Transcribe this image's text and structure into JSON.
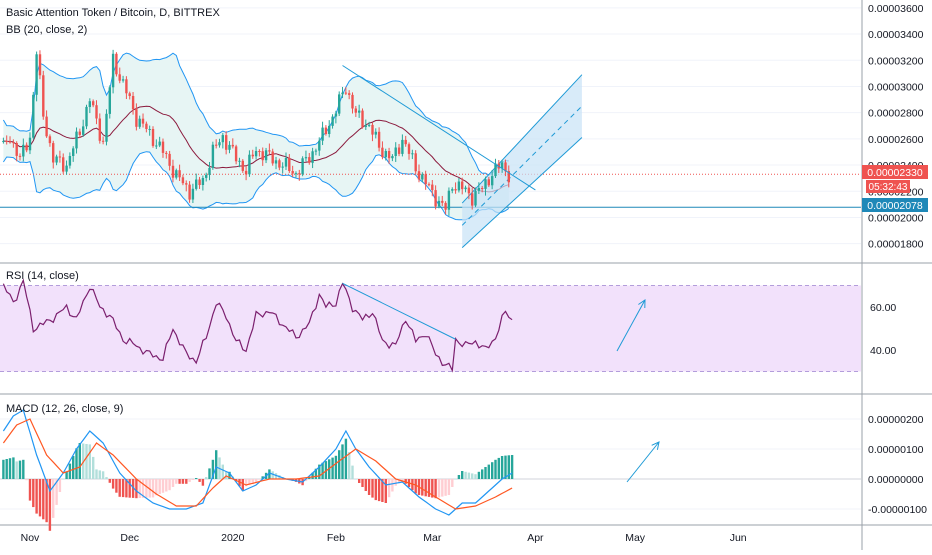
{
  "chart_data": [
    {
      "type": "candlestick",
      "panel": "price",
      "title": "Basic Attention Token / Bitcoin, D, BITTREX",
      "indicator_label": "BB (20, close, 2)",
      "y_ticks": [
        "0.00003600",
        "0.00003400",
        "0.00003200",
        "0.00003000",
        "0.00002800",
        "0.00002600",
        "0.00002400",
        "0.00002200",
        "0.00002000",
        "0.00001800"
      ],
      "ylim": [
        1.66e-05,
        3.66e-05
      ],
      "last_price": "0.00002330",
      "countdown": "05:32:43",
      "level_price": "0.00002078",
      "level_value": 2.078e-05,
      "keypoints": [
        {
          "day": 0,
          "close": 2.52e-05
        },
        {
          "day": 2,
          "close": 2.62e-05
        },
        {
          "day": 5,
          "close": 2.44e-05
        },
        {
          "day": 8,
          "close": 2.62e-05
        },
        {
          "day": 10,
          "close": 3.26e-05
        },
        {
          "day": 12,
          "close": 2.78e-05
        },
        {
          "day": 15,
          "close": 2.44e-05
        },
        {
          "day": 19,
          "close": 2.4e-05
        },
        {
          "day": 23,
          "close": 2.66e-05
        },
        {
          "day": 26,
          "close": 2.9e-05
        },
        {
          "day": 30,
          "close": 2.57e-05
        },
        {
          "day": 33,
          "close": 3.2e-05
        },
        {
          "day": 36,
          "close": 3.02e-05
        },
        {
          "day": 40,
          "close": 2.76e-05
        },
        {
          "day": 44,
          "close": 2.64e-05
        },
        {
          "day": 48,
          "close": 2.5e-05
        },
        {
          "day": 52,
          "close": 2.32e-05
        },
        {
          "day": 56,
          "close": 2.2e-05
        },
        {
          "day": 60,
          "close": 2.28e-05
        },
        {
          "day": 63,
          "close": 2.5e-05
        },
        {
          "day": 66,
          "close": 2.62e-05
        },
        {
          "day": 70,
          "close": 2.45e-05
        },
        {
          "day": 73,
          "close": 2.36e-05
        },
        {
          "day": 76,
          "close": 2.52e-05
        },
        {
          "day": 80,
          "close": 2.46e-05
        },
        {
          "day": 84,
          "close": 2.4e-05
        },
        {
          "day": 88,
          "close": 2.34e-05
        },
        {
          "day": 92,
          "close": 2.46e-05
        },
        {
          "day": 96,
          "close": 2.62e-05
        },
        {
          "day": 100,
          "close": 2.82e-05
        },
        {
          "day": 103,
          "close": 3e-05
        },
        {
          "day": 106,
          "close": 2.78e-05
        },
        {
          "day": 110,
          "close": 2.7e-05
        },
        {
          "day": 113,
          "close": 2.54e-05
        },
        {
          "day": 117,
          "close": 2.44e-05
        },
        {
          "day": 120,
          "close": 2.6e-05
        },
        {
          "day": 124,
          "close": 2.38e-05
        },
        {
          "day": 128,
          "close": 2.22e-05
        },
        {
          "day": 131,
          "close": 2.12e-05
        },
        {
          "day": 133,
          "close": 2.06e-05
        },
        {
          "day": 135,
          "close": 2.26e-05
        },
        {
          "day": 138,
          "close": 2.22e-05
        },
        {
          "day": 141,
          "close": 2.16e-05
        },
        {
          "day": 144,
          "close": 2.22e-05
        },
        {
          "day": 147,
          "close": 2.34e-05
        },
        {
          "day": 150,
          "close": 2.4e-05
        },
        {
          "day": 152,
          "close": 2.33e-05
        }
      ],
      "channel": {
        "lower_start": {
          "day": 138,
          "value": 1.77e-05
        },
        "lower_end": {
          "day": 174,
          "value": 2.61e-05
        },
        "upper_start": {
          "day": 138,
          "value": 2.11e-05
        },
        "upper_end": {
          "day": 174,
          "value": 3.09e-05
        },
        "mid_start": {
          "day": 138,
          "value": 1.94e-05
        },
        "mid_end": {
          "day": 174,
          "value": 2.85e-05
        }
      },
      "trendline": {
        "start": {
          "day": 102,
          "value": 3.16e-05
        },
        "end": {
          "day": 160,
          "value": 2.21e-05
        }
      }
    },
    {
      "type": "line",
      "panel": "rsi",
      "indicator_label": "RSI (14, close)",
      "y_ticks": [
        "60.00",
        "40.00"
      ],
      "ylim": [
        20,
        80
      ],
      "band": [
        30,
        70
      ],
      "keypoints": [
        {
          "day": 0,
          "value": 70
        },
        {
          "day": 3,
          "value": 62
        },
        {
          "day": 6,
          "value": 72
        },
        {
          "day": 9,
          "value": 50
        },
        {
          "day": 12,
          "value": 52
        },
        {
          "day": 16,
          "value": 56
        },
        {
          "day": 19,
          "value": 60
        },
        {
          "day": 22,
          "value": 54
        },
        {
          "day": 26,
          "value": 70
        },
        {
          "day": 29,
          "value": 60
        },
        {
          "day": 32,
          "value": 56
        },
        {
          "day": 36,
          "value": 45
        },
        {
          "day": 40,
          "value": 42
        },
        {
          "day": 44,
          "value": 38
        },
        {
          "day": 48,
          "value": 36
        },
        {
          "day": 51,
          "value": 50
        },
        {
          "day": 55,
          "value": 38
        },
        {
          "day": 58,
          "value": 35
        },
        {
          "day": 61,
          "value": 46
        },
        {
          "day": 64,
          "value": 62
        },
        {
          "day": 67,
          "value": 56
        },
        {
          "day": 70,
          "value": 44
        },
        {
          "day": 73,
          "value": 40
        },
        {
          "day": 76,
          "value": 56
        },
        {
          "day": 80,
          "value": 58
        },
        {
          "day": 84,
          "value": 52
        },
        {
          "day": 88,
          "value": 46
        },
        {
          "day": 92,
          "value": 52
        },
        {
          "day": 95,
          "value": 66
        },
        {
          "day": 97,
          "value": 60
        },
        {
          "day": 100,
          "value": 62
        },
        {
          "day": 102,
          "value": 71
        },
        {
          "day": 105,
          "value": 60
        },
        {
          "day": 108,
          "value": 54
        },
        {
          "day": 111,
          "value": 58
        },
        {
          "day": 114,
          "value": 44
        },
        {
          "day": 118,
          "value": 42
        },
        {
          "day": 121,
          "value": 55
        },
        {
          "day": 124,
          "value": 44
        },
        {
          "day": 127,
          "value": 48
        },
        {
          "day": 130,
          "value": 38
        },
        {
          "day": 133,
          "value": 33
        },
        {
          "day": 135,
          "value": 31
        },
        {
          "day": 136,
          "value": 45
        },
        {
          "day": 139,
          "value": 42
        },
        {
          "day": 142,
          "value": 44
        },
        {
          "day": 145,
          "value": 40
        },
        {
          "day": 148,
          "value": 46
        },
        {
          "day": 151,
          "value": 58
        },
        {
          "day": 153,
          "value": 54
        }
      ],
      "trendline": {
        "start": {
          "day": 102,
          "value": 71
        },
        "end": {
          "day": 136,
          "value": 45
        }
      }
    },
    {
      "type": "bar+line",
      "panel": "macd",
      "indicator_label": "MACD (12, 26, close, 9)",
      "y_ticks": [
        "0.00000200",
        "0.00000100",
        "0.00000000",
        "-0.00000100"
      ],
      "ylim": [
        -1.5e-06,
        2.8e-06
      ],
      "macd_keypoints": [
        {
          "day": 0,
          "value": 1.6e-06
        },
        {
          "day": 3,
          "value": 2.1e-06
        },
        {
          "day": 6,
          "value": 2.3e-06
        },
        {
          "day": 10,
          "value": 8e-07
        },
        {
          "day": 14,
          "value": -4e-07
        },
        {
          "day": 18,
          "value": 2e-07
        },
        {
          "day": 22,
          "value": 1e-06
        },
        {
          "day": 26,
          "value": 1.6e-06
        },
        {
          "day": 30,
          "value": 1.2e-06
        },
        {
          "day": 35,
          "value": 2e-07
        },
        {
          "day": 40,
          "value": -4e-07
        },
        {
          "day": 45,
          "value": -8e-07
        },
        {
          "day": 50,
          "value": -1e-06
        },
        {
          "day": 55,
          "value": -1e-06
        },
        {
          "day": 60,
          "value": -8e-07
        },
        {
          "day": 64,
          "value": 4e-07
        },
        {
          "day": 68,
          "value": 2e-07
        },
        {
          "day": 72,
          "value": -4e-07
        },
        {
          "day": 76,
          "value": -2e-07
        },
        {
          "day": 80,
          "value": 2e-07
        },
        {
          "day": 85,
          "value": 0.0
        },
        {
          "day": 90,
          "value": -1e-07
        },
        {
          "day": 95,
          "value": 4e-07
        },
        {
          "day": 100,
          "value": 1e-06
        },
        {
          "day": 103,
          "value": 1.6e-06
        },
        {
          "day": 106,
          "value": 1e-06
        },
        {
          "day": 110,
          "value": 4e-07
        },
        {
          "day": 115,
          "value": -2e-07
        },
        {
          "day": 120,
          "value": -1e-07
        },
        {
          "day": 125,
          "value": -6e-07
        },
        {
          "day": 130,
          "value": -1e-06
        },
        {
          "day": 134,
          "value": -1.2e-06
        },
        {
          "day": 138,
          "value": -8e-07
        },
        {
          "day": 142,
          "value": -8e-07
        },
        {
          "day": 146,
          "value": -4e-07
        },
        {
          "day": 150,
          "value": 0.0
        },
        {
          "day": 153,
          "value": 2e-07
        }
      ],
      "signal_keypoints": [
        {
          "day": 0,
          "value": 1.2e-06
        },
        {
          "day": 4,
          "value": 1.8e-06
        },
        {
          "day": 8,
          "value": 2e-06
        },
        {
          "day": 13,
          "value": 8e-07
        },
        {
          "day": 18,
          "value": 2e-07
        },
        {
          "day": 23,
          "value": 4e-07
        },
        {
          "day": 28,
          "value": 1.2e-06
        },
        {
          "day": 33,
          "value": 8e-07
        },
        {
          "day": 40,
          "value": 0.0
        },
        {
          "day": 46,
          "value": -5e-07
        },
        {
          "day": 52,
          "value": -9e-07
        },
        {
          "day": 58,
          "value": -9e-07
        },
        {
          "day": 63,
          "value": -3e-07
        },
        {
          "day": 67,
          "value": 1e-07
        },
        {
          "day": 73,
          "value": -2e-07
        },
        {
          "day": 80,
          "value": 0.0
        },
        {
          "day": 88,
          "value": 0.0
        },
        {
          "day": 95,
          "value": 1e-07
        },
        {
          "day": 101,
          "value": 6e-07
        },
        {
          "day": 106,
          "value": 1e-06
        },
        {
          "day": 112,
          "value": 6e-07
        },
        {
          "day": 118,
          "value": 0.0
        },
        {
          "day": 124,
          "value": -2e-07
        },
        {
          "day": 130,
          "value": -6e-07
        },
        {
          "day": 136,
          "value": -1e-06
        },
        {
          "day": 142,
          "value": -9e-07
        },
        {
          "day": 148,
          "value": -6e-07
        },
        {
          "day": 153,
          "value": -3e-07
        }
      ]
    }
  ],
  "x_axis": {
    "labels": [
      {
        "label": "Nov",
        "day": 8
      },
      {
        "label": "Dec",
        "day": 38
      },
      {
        "label": "2020",
        "day": 69
      },
      {
        "label": "Feb",
        "day": 100
      },
      {
        "label": "Mar",
        "day": 129
      },
      {
        "label": "Apr",
        "day": 160
      },
      {
        "label": "May",
        "day": 190
      },
      {
        "label": "Jun",
        "day": 221
      }
    ]
  },
  "colors": {
    "up": "#26a69a",
    "down": "#ef5350",
    "bb_fill": "#e7f5f4",
    "bb_line": "#2196f3",
    "basis": "#8b1a3d",
    "rsi_line": "#7b1f6e",
    "rsi_band": "#f2e1fb",
    "macd": "#2196f3",
    "signal": "#ff5722",
    "annot": "#1e9ad6",
    "channel_fill": "#c8e3f7",
    "level": "#1e88b8"
  }
}
